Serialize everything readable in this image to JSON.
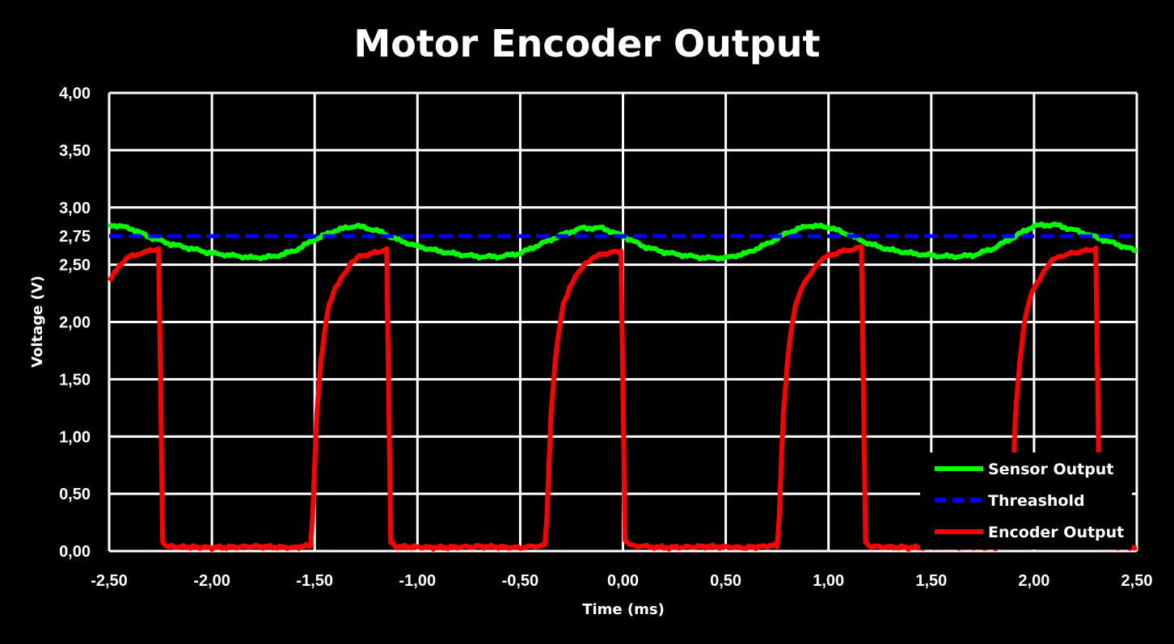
{
  "chart_data": {
    "type": "line",
    "title": "Motor Encoder Output",
    "xlabel": "Time (ms)",
    "ylabel": "Voltage (V)",
    "xlim": [
      -2.5,
      2.5
    ],
    "ylim": [
      0,
      4
    ],
    "x_ticks": [
      "-2,50",
      "-2,00",
      "-1,50",
      "-1,00",
      "-0,50",
      "0,00",
      "0,50",
      "1,00",
      "1,50",
      "2,00",
      "2,50"
    ],
    "y_ticks": [
      "0,00",
      "0,50",
      "1,00",
      "1,50",
      "2,00",
      "2,50",
      "3,00",
      "3,50",
      "4,00"
    ],
    "threshold_tick_label": "2,75",
    "grid": true,
    "legend_position": "bottom-right",
    "series": [
      {
        "name": "Sensor Output",
        "color": "#00FF00",
        "style": "solid",
        "x": [
          -2.5,
          -2.4,
          -2.3,
          -2.2,
          -2.1,
          -2.0,
          -1.9,
          -1.8,
          -1.7,
          -1.6,
          -1.5,
          -1.4,
          -1.3,
          -1.2,
          -1.1,
          -1.0,
          -0.9,
          -0.8,
          -0.7,
          -0.6,
          -0.5,
          -0.4,
          -0.3,
          -0.2,
          -0.1,
          0.0,
          0.1,
          0.2,
          0.3,
          0.4,
          0.5,
          0.6,
          0.7,
          0.8,
          0.9,
          1.0,
          1.1,
          1.2,
          1.3,
          1.4,
          1.5,
          1.6,
          1.7,
          1.8,
          1.9,
          2.0,
          2.1,
          2.2,
          2.3,
          2.4,
          2.5
        ],
        "y": [
          2.85,
          2.82,
          2.74,
          2.68,
          2.64,
          2.6,
          2.58,
          2.56,
          2.57,
          2.62,
          2.72,
          2.8,
          2.84,
          2.8,
          2.72,
          2.66,
          2.62,
          2.59,
          2.57,
          2.57,
          2.6,
          2.68,
          2.76,
          2.82,
          2.82,
          2.75,
          2.66,
          2.61,
          2.58,
          2.56,
          2.56,
          2.6,
          2.68,
          2.78,
          2.84,
          2.83,
          2.76,
          2.68,
          2.63,
          2.6,
          2.58,
          2.57,
          2.58,
          2.64,
          2.74,
          2.84,
          2.85,
          2.8,
          2.74,
          2.68,
          2.62
        ]
      },
      {
        "name": "Threashold",
        "color": "#0000FF",
        "style": "dashed",
        "x": [
          -2.5,
          2.5
        ],
        "y": [
          2.75,
          2.75
        ]
      },
      {
        "name": "Encoder Output",
        "color": "#FF0000",
        "style": "solid",
        "x": [
          -2.5,
          -2.45,
          -2.4,
          -2.35,
          -2.3,
          -2.26,
          -2.25,
          -2.24,
          -2.22,
          -2.0,
          -1.8,
          -1.6,
          -1.52,
          -1.51,
          -1.49,
          -1.47,
          -1.45,
          -1.43,
          -1.4,
          -1.36,
          -1.32,
          -1.28,
          -1.22,
          -1.15,
          -1.14,
          -1.13,
          -1.11,
          -0.9,
          -0.7,
          -0.5,
          -0.38,
          -0.37,
          -0.35,
          -0.33,
          -0.31,
          -0.29,
          -0.26,
          -0.22,
          -0.18,
          -0.14,
          -0.08,
          -0.01,
          0.0,
          0.01,
          0.03,
          0.2,
          0.4,
          0.6,
          0.75,
          0.76,
          0.78,
          0.8,
          0.82,
          0.84,
          0.87,
          0.91,
          0.95,
          0.99,
          1.05,
          1.16,
          1.17,
          1.18,
          1.2,
          1.4,
          1.6,
          1.8,
          1.88,
          1.89,
          1.91,
          1.93,
          1.95,
          1.97,
          2.0,
          2.04,
          2.08,
          2.12,
          2.18,
          2.3,
          2.31,
          2.32,
          2.34,
          2.5
        ],
        "y": [
          2.35,
          2.5,
          2.57,
          2.6,
          2.62,
          2.64,
          1.5,
          0.08,
          0.04,
          0.03,
          0.04,
          0.03,
          0.05,
          0.3,
          1.2,
          1.65,
          1.95,
          2.15,
          2.3,
          2.42,
          2.52,
          2.57,
          2.6,
          2.63,
          1.4,
          0.08,
          0.04,
          0.03,
          0.04,
          0.03,
          0.05,
          0.3,
          1.2,
          1.65,
          1.95,
          2.15,
          2.3,
          2.42,
          2.52,
          2.57,
          2.6,
          2.62,
          1.4,
          0.1,
          0.05,
          0.03,
          0.04,
          0.03,
          0.05,
          0.3,
          1.2,
          1.65,
          1.95,
          2.15,
          2.3,
          2.42,
          2.52,
          2.57,
          2.61,
          2.65,
          1.4,
          0.08,
          0.04,
          0.03,
          0.04,
          0.03,
          0.05,
          0.3,
          1.2,
          1.65,
          1.95,
          2.15,
          2.3,
          2.42,
          2.52,
          2.57,
          2.6,
          2.64,
          1.4,
          0.08,
          0.04,
          0.03
        ]
      }
    ]
  }
}
